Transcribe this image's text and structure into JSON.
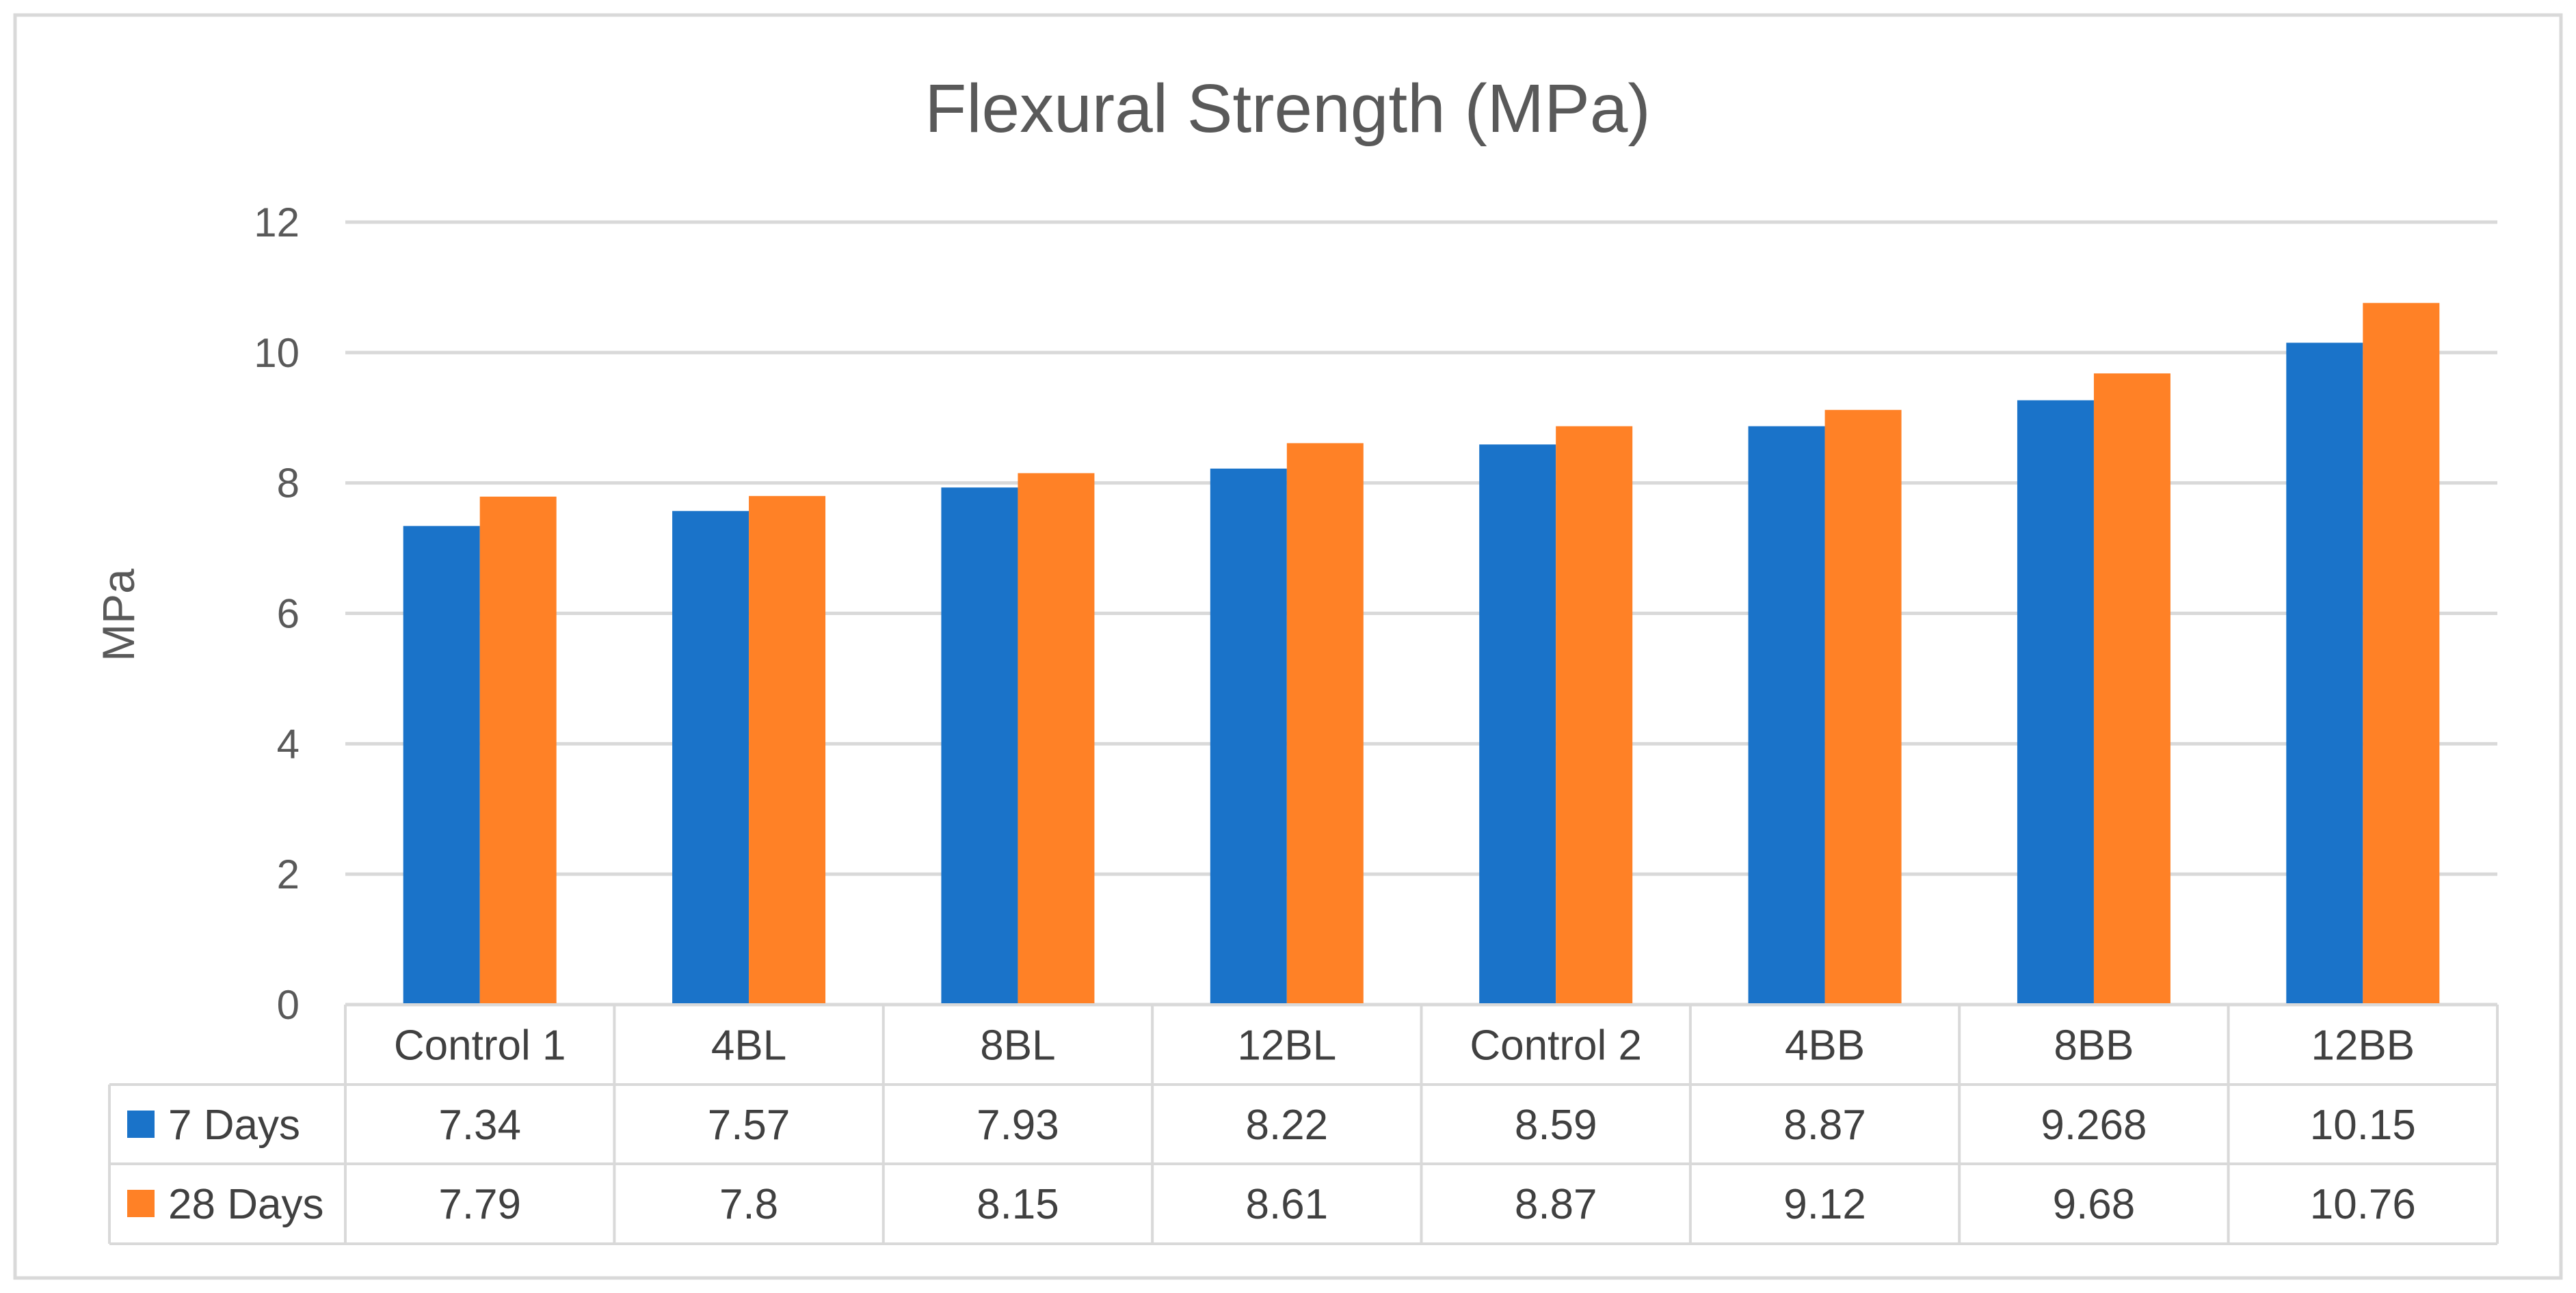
{
  "chart_data": {
    "type": "bar",
    "title": "Flexural Strength (MPa)",
    "xlabel": "",
    "ylabel": "MPa",
    "ylim": [
      0,
      12
    ],
    "yticks": [
      "0",
      "2",
      "4",
      "6",
      "8",
      "10",
      "12"
    ],
    "grid": true,
    "legend": "data-table-left",
    "categories": [
      "Control 1",
      "4BL",
      "8BL",
      "12BL",
      "Control 2",
      "4BB",
      "8BB",
      "12BB"
    ],
    "series": [
      {
        "name": "7 Days",
        "color": "#1a73c9",
        "values": [
          7.34,
          7.57,
          7.93,
          8.22,
          8.59,
          8.87,
          9.268,
          10.15
        ],
        "labels": [
          "7.34",
          "7.57",
          "7.93",
          "8.22",
          "8.59",
          "8.87",
          "9.268",
          "10.15"
        ]
      },
      {
        "name": "28 Days",
        "color": "#ff8126",
        "values": [
          7.79,
          7.8,
          8.15,
          8.61,
          8.87,
          9.12,
          9.68,
          10.76
        ],
        "labels": [
          "7.79",
          "7.8",
          "8.15",
          "8.61",
          "8.87",
          "9.12",
          "9.68",
          "10.76"
        ]
      }
    ]
  }
}
